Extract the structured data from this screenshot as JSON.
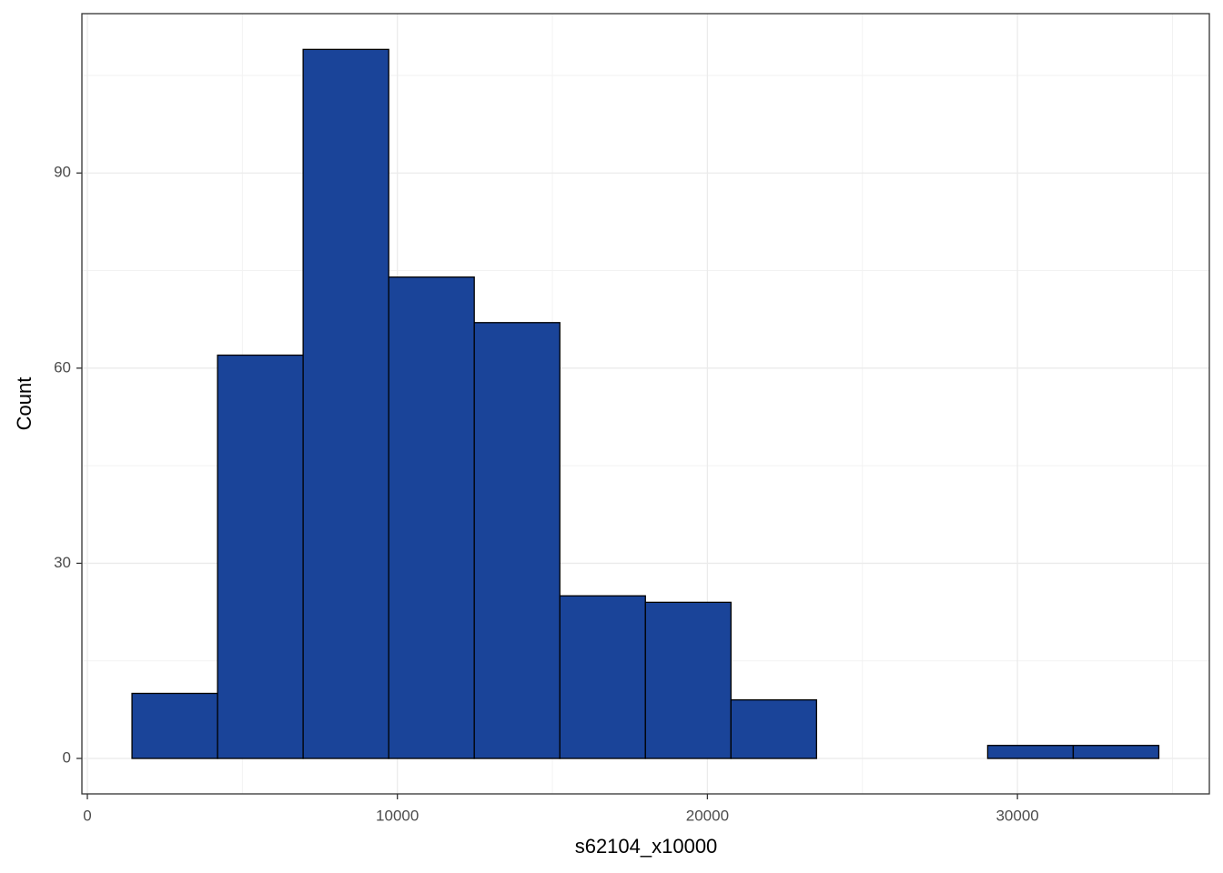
{
  "chart_data": {
    "type": "histogram",
    "x_label": "s62104_x10000",
    "y_label": "Count",
    "bins": [
      1440,
      4200,
      6960,
      9720,
      12480,
      15240,
      18000,
      20760,
      23520,
      26280,
      29040,
      31800,
      34560
    ],
    "values": [
      10,
      62,
      109,
      74,
      67,
      25,
      24,
      9,
      0,
      0,
      2,
      2
    ],
    "color": "#1a4499",
    "edge_color": "#000000",
    "xlim": [
      -176,
      36190
    ],
    "ylim": [
      -5.45,
      114.5
    ],
    "xticks": [
      0,
      10000,
      20000,
      30000
    ],
    "yticks": [
      0,
      30,
      60,
      90
    ],
    "x_minor_grid": [
      5000,
      15000,
      25000,
      35000
    ],
    "y_minor_grid": [
      15,
      45,
      75,
      105
    ],
    "grid": true
  }
}
